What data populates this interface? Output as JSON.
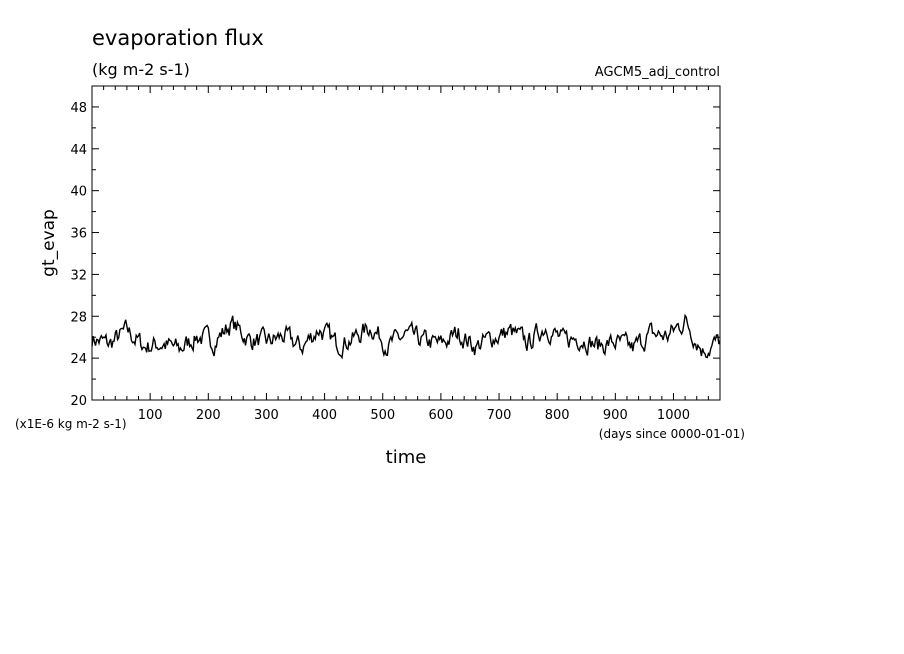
{
  "chart_data": {
    "type": "line",
    "title": "evaporation flux",
    "subtitle": "(kg m-2 s-1)",
    "experiment": "AGCM5_adj_control",
    "xlabel": "time",
    "ylabel": "gt_evap",
    "x_unit": "(days since 0000-01-01)",
    "y_unit": "(x1E-6 kg m-2 s-1)",
    "xlim": [
      0,
      1080
    ],
    "ylim": [
      20,
      50
    ],
    "x_ticks": [
      100,
      200,
      300,
      400,
      500,
      600,
      700,
      800,
      900,
      1000
    ],
    "y_ticks": [
      24,
      28,
      32,
      36,
      40,
      44,
      48
    ],
    "y_axis_min_label": 20,
    "grid": false,
    "series": [
      {
        "x": [
          0,
          30,
          60,
          90,
          120,
          150,
          180,
          210,
          240,
          270,
          300,
          330,
          360,
          390,
          420,
          450,
          480,
          510,
          540,
          570,
          600,
          630,
          660,
          690,
          720,
          750,
          780,
          810,
          840,
          870,
          900,
          930,
          960,
          990,
          1020,
          1050,
          1080
        ],
        "values": [
          25.9,
          25.3,
          26.6,
          25.1,
          25.4,
          24.8,
          26.1,
          25.6,
          27.3,
          25.8,
          25.5,
          26.1,
          25.0,
          26.8,
          25.4,
          25.9,
          27.0,
          25.2,
          26.2,
          25.6,
          25.3,
          26.4,
          25.1,
          26.0,
          26.5,
          25.4,
          27.1,
          25.6,
          26.0,
          25.2,
          25.5,
          24.9,
          26.3,
          26.1,
          27.6,
          24.8,
          25.6
        ]
      }
    ]
  }
}
